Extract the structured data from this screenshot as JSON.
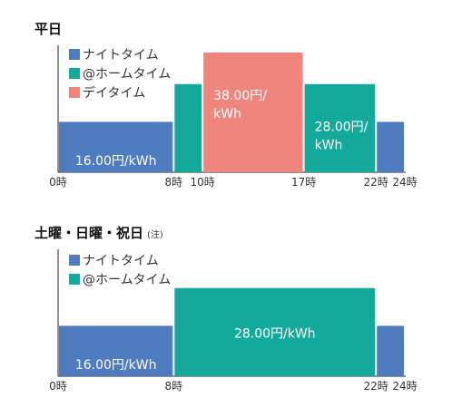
{
  "colors": {
    "night": "#4f7cc1",
    "home": "#13a99b",
    "day": "#ef857d"
  },
  "chart_data": [
    {
      "type": "bar",
      "title": "平日",
      "note": "",
      "xlim": [
        0,
        24
      ],
      "ylim": [
        0,
        40
      ],
      "xticks": [
        {
          "x": 0,
          "label": "0時"
        },
        {
          "x": 8,
          "label": "8時"
        },
        {
          "x": 10,
          "label": "10時"
        },
        {
          "x": 17,
          "label": "17時"
        },
        {
          "x": 22,
          "label": "22時"
        },
        {
          "x": 24,
          "label": "24時"
        }
      ],
      "legend": [
        {
          "name": "ナイトタイム",
          "color": "night"
        },
        {
          "name": "@ホームタイム",
          "color": "home"
        },
        {
          "name": "デイタイム",
          "color": "day"
        }
      ],
      "segments": [
        {
          "start": 0,
          "end": 8,
          "value": 16.0,
          "series": "night",
          "label": "16.00円/kWh"
        },
        {
          "start": 8,
          "end": 10,
          "value": 28.0,
          "series": "home",
          "label": ""
        },
        {
          "start": 10,
          "end": 17,
          "value": 38.0,
          "series": "day",
          "label": "38.00円/\nkWh"
        },
        {
          "start": 17,
          "end": 22,
          "value": 28.0,
          "series": "home",
          "label": "28.00円/\nkWh"
        },
        {
          "start": 22,
          "end": 24,
          "value": 16.0,
          "series": "night",
          "label": ""
        }
      ]
    },
    {
      "type": "bar",
      "title": "土曜・日曜・祝日",
      "note": "(注)",
      "xlim": [
        0,
        24
      ],
      "ylim": [
        0,
        40
      ],
      "xticks": [
        {
          "x": 0,
          "label": "0時"
        },
        {
          "x": 8,
          "label": "8時"
        },
        {
          "x": 22,
          "label": "22時"
        },
        {
          "x": 24,
          "label": "24時"
        }
      ],
      "legend": [
        {
          "name": "ナイトタイム",
          "color": "night"
        },
        {
          "name": "@ホームタイム",
          "color": "home"
        }
      ],
      "segments": [
        {
          "start": 0,
          "end": 8,
          "value": 16.0,
          "series": "night",
          "label": "16.00円/kWh"
        },
        {
          "start": 8,
          "end": 22,
          "value": 28.0,
          "series": "home",
          "label": "28.00円/kWh"
        },
        {
          "start": 22,
          "end": 24,
          "value": 16.0,
          "series": "night",
          "label": ""
        }
      ]
    }
  ]
}
